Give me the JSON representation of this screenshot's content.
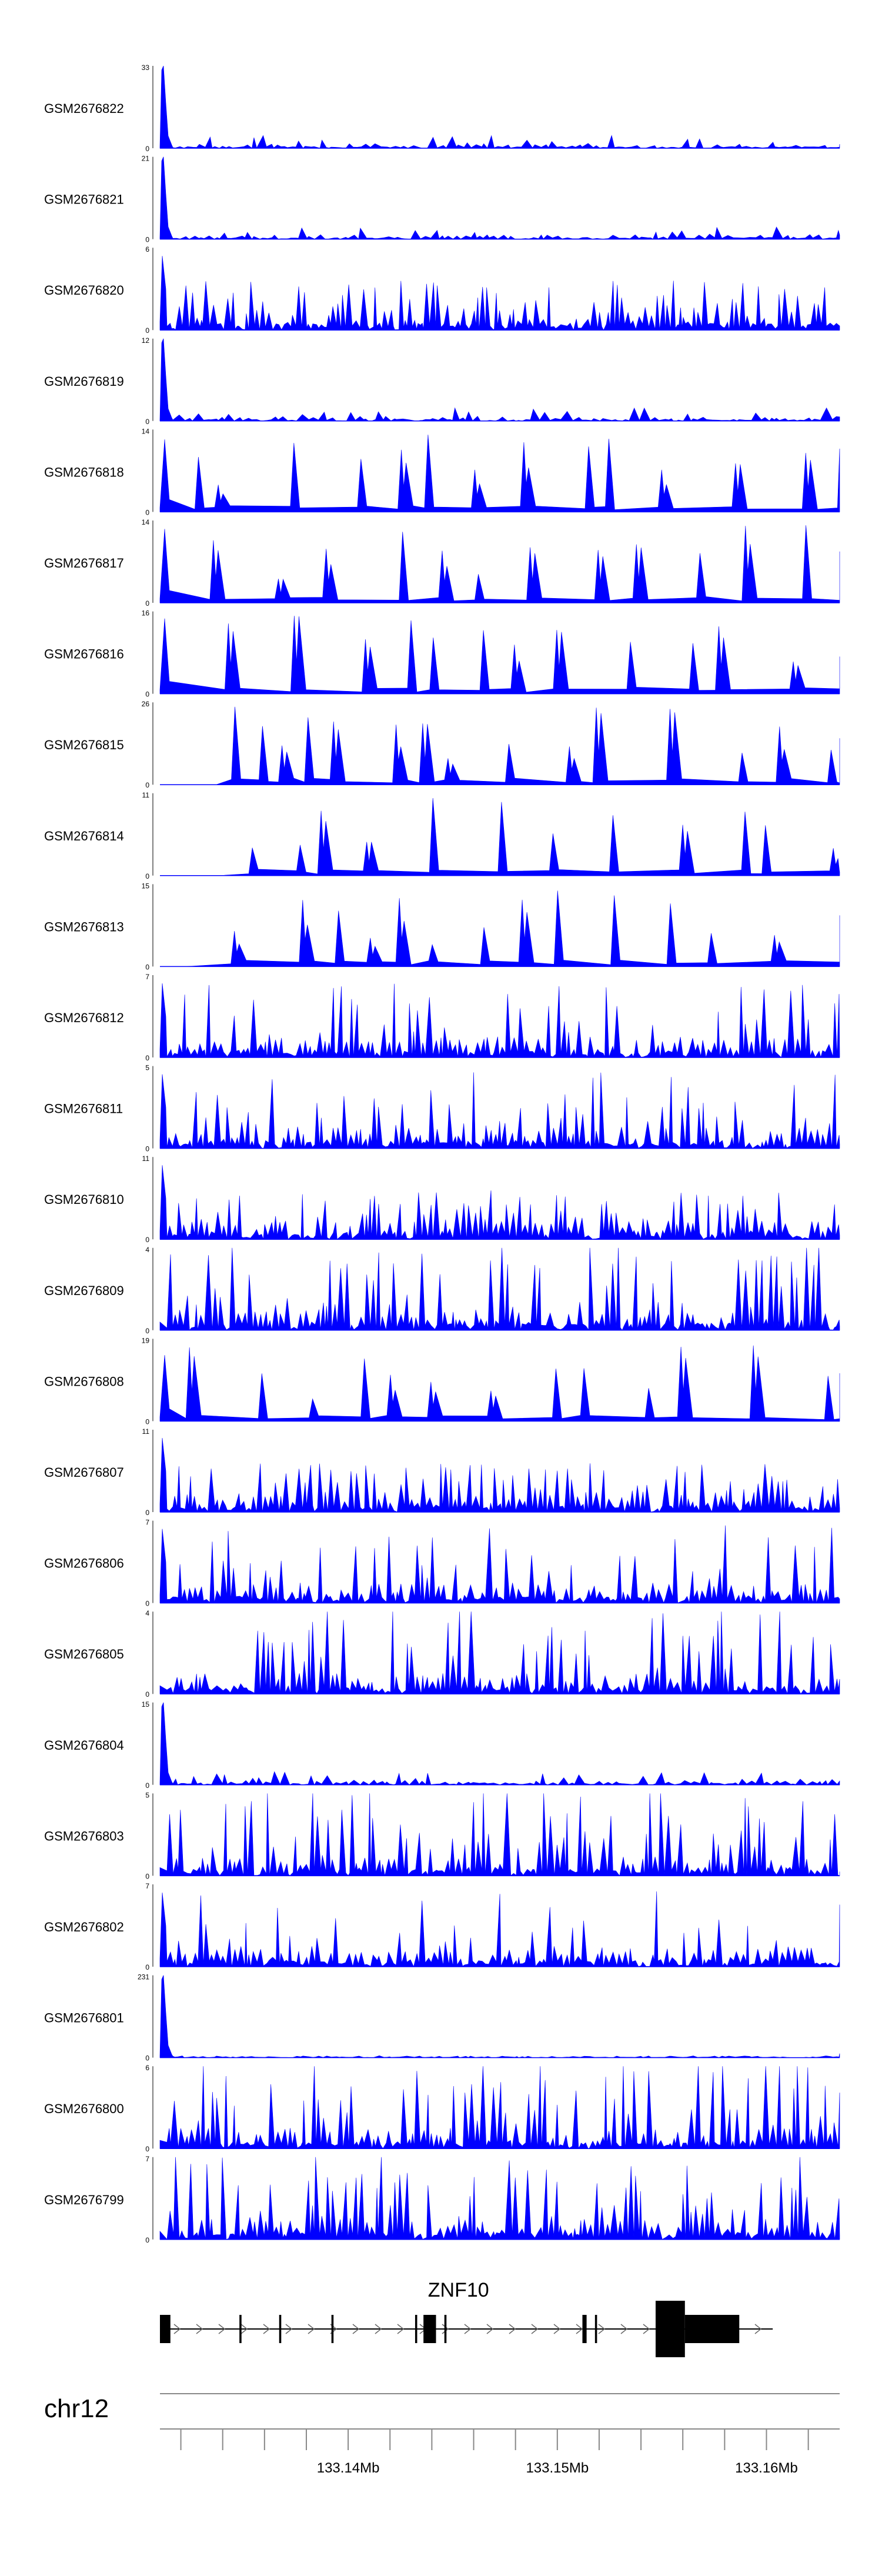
{
  "chart_data": {
    "type": "area",
    "title": "",
    "fill_color": "#0000ff",
    "xlim": [
      133131000,
      133163500
    ],
    "tracks": [
      {
        "name": "GSM2676822",
        "ymax": 33,
        "profile": "hi-lo"
      },
      {
        "name": "GSM2676821",
        "ymax": 21,
        "profile": "hi-lo"
      },
      {
        "name": "GSM2676820",
        "ymax": 6,
        "profile": "dense"
      },
      {
        "name": "GSM2676819",
        "ymax": 12,
        "profile": "hi-lo"
      },
      {
        "name": "GSM2676818",
        "ymax": 14,
        "profile": "sparse"
      },
      {
        "name": "GSM2676817",
        "ymax": 14,
        "profile": "sparse"
      },
      {
        "name": "GSM2676816",
        "ymax": 16,
        "profile": "sparse"
      },
      {
        "name": "GSM2676815",
        "ymax": 26,
        "profile": "sparse-late"
      },
      {
        "name": "GSM2676814",
        "ymax": 11,
        "profile": "sparse-late"
      },
      {
        "name": "GSM2676813",
        "ymax": 15,
        "profile": "sparse-late"
      },
      {
        "name": "GSM2676812",
        "ymax": 7,
        "profile": "medium"
      },
      {
        "name": "GSM2676811",
        "ymax": 5,
        "profile": "medium"
      },
      {
        "name": "GSM2676810",
        "ymax": 11,
        "profile": "dense"
      },
      {
        "name": "GSM2676809",
        "ymax": 4,
        "profile": "dense-tall"
      },
      {
        "name": "GSM2676808",
        "ymax": 19,
        "profile": "sparse"
      },
      {
        "name": "GSM2676807",
        "ymax": 11,
        "profile": "dense"
      },
      {
        "name": "GSM2676806",
        "ymax": 7,
        "profile": "medium"
      },
      {
        "name": "GSM2676805",
        "ymax": 4,
        "profile": "dense-tall"
      },
      {
        "name": "GSM2676804",
        "ymax": 15,
        "profile": "hi-lo"
      },
      {
        "name": "GSM2676803",
        "ymax": 5,
        "profile": "dense-tall"
      },
      {
        "name": "GSM2676802",
        "ymax": 7,
        "profile": "medium"
      },
      {
        "name": "GSM2676801",
        "ymax": 231,
        "profile": "spike"
      },
      {
        "name": "GSM2676800",
        "ymax": 6,
        "profile": "dense-tall"
      },
      {
        "name": "GSM2676799",
        "ymax": 7,
        "profile": "dense-tall"
      }
    ],
    "gene": {
      "name": "ZNF10",
      "start": 133131000,
      "end": 133160300,
      "exons": [
        [
          133131000,
          133131500
        ],
        [
          133134800,
          133134900
        ],
        [
          133136700,
          133136800
        ],
        [
          133139200,
          133139300
        ],
        [
          133143200,
          133143300
        ],
        [
          133143600,
          133144200
        ],
        [
          133144600,
          133144700
        ],
        [
          133151200,
          133151400
        ],
        [
          133151800,
          133151900
        ],
        [
          133154700,
          133156100
        ],
        [
          133156100,
          133158700
        ]
      ],
      "thick_exons": [
        [
          133154700,
          133156100
        ]
      ]
    },
    "chromosome": "chr12",
    "axis_ticks": [
      133132000,
      133134000,
      133136000,
      133138000,
      133140000,
      133142000,
      133144000,
      133146000,
      133148000,
      133150000,
      133152000,
      133154000,
      133156000,
      133158000,
      133160000,
      133162000
    ],
    "axis_labels": [
      {
        "pos": 133140000,
        "text": "133.14Mb"
      },
      {
        "pos": 133150000,
        "text": "133.15Mb"
      },
      {
        "pos": 133160000,
        "text": "133.16Mb"
      }
    ]
  }
}
